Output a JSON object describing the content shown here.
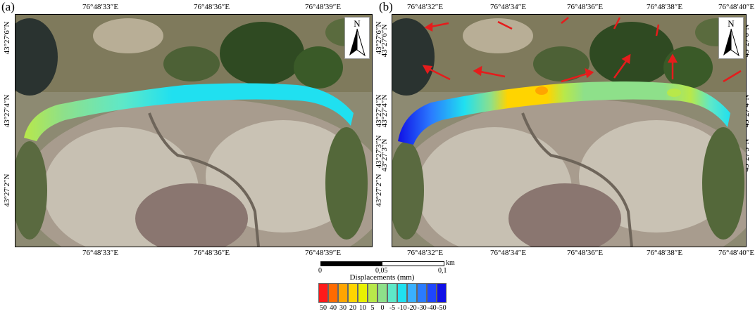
{
  "panel_a": {
    "label": "(a)",
    "top_lon": [
      "76°48′33″E",
      "76°48′36″E",
      "76°48′39″E"
    ],
    "bottom_lon": [
      "76°48′33″E",
      "76°48′36″E",
      "76°48′39″E"
    ],
    "left_lat": [
      "43°27′6″N",
      "43°27′4″N",
      "43°27′2″N"
    ],
    "right_lat": [
      "43°27′6″N",
      "43°27′4″N",
      "43°27′3″N",
      "43°27′2″N"
    ],
    "north": "N"
  },
  "panel_b": {
    "label": "(b)",
    "top_lon": [
      "76°48′32″E",
      "76°48′34″E",
      "76°48′36″E",
      "76°48′38″E",
      "76°48′40″E"
    ],
    "bottom_lon": [
      "76°48′32″E",
      "76°48′34″E",
      "76°48′36″E",
      "76°48′38″E",
      "76°48′40″E"
    ],
    "left_lat": [
      "43°27′6″N",
      "43°27′4″N",
      "43°27′3″N"
    ],
    "right_lat": [
      "43°27′6″N",
      "43°27′4″N",
      "43°27′3″N"
    ],
    "north": "N"
  },
  "scale_bar": {
    "labels": [
      "0",
      "0,05",
      "0,1"
    ],
    "unit": "km"
  },
  "legend": {
    "title": "Displacements (mm)",
    "values": [
      "50",
      "40",
      "30",
      "20",
      "10",
      "5",
      "0",
      "-5",
      "-10",
      "-20",
      "-30",
      "-40",
      "-50"
    ],
    "colors": [
      "#ff1a1a",
      "#ff6a00",
      "#ffa500",
      "#ffd400",
      "#e8f000",
      "#b8e84a",
      "#8ee08a",
      "#5ee8c8",
      "#20e0f0",
      "#3ab0ff",
      "#2a7bff",
      "#1e46ff",
      "#1010e6"
    ]
  }
}
